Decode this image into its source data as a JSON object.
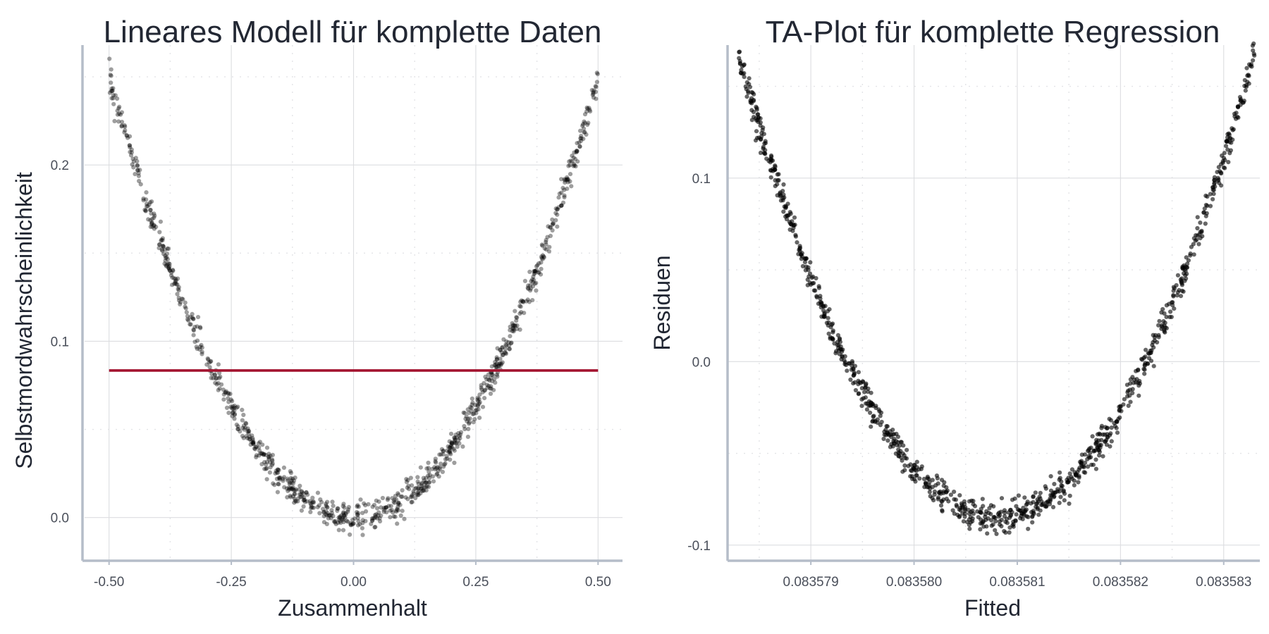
{
  "chart_data": [
    {
      "type": "scatter",
      "title": "Lineares Modell für komplette Daten",
      "xlabel": "Zusammenhalt",
      "ylabel": "Selbstmordwahrscheinlichkeit",
      "xlim": [
        -0.55,
        0.55
      ],
      "ylim": [
        -0.0245,
        0.268
      ],
      "x_ticks": [
        -0.5,
        -0.25,
        0.0,
        0.25,
        0.5
      ],
      "x_tick_labels": [
        "-0.50",
        "-0.25",
        "0.00",
        "0.25",
        "0.50"
      ],
      "y_ticks": [
        0.0,
        0.1,
        0.2
      ],
      "y_tick_labels": [
        "0.0",
        "0.1",
        "0.2"
      ],
      "grid": true,
      "point_color": "#000000",
      "point_opacity": 0.38,
      "line_color": "#a3132f",
      "curve": {
        "form": "y = x^2",
        "n_points": 1000,
        "noise_sd": 0.004
      },
      "fitted_line": {
        "x": [
          -0.5,
          0.5
        ],
        "y": [
          0.0834,
          0.0834
        ]
      }
    },
    {
      "type": "scatter",
      "title": "TA-Plot für komplette Regression",
      "xlabel": "Fitted",
      "ylabel": "Residuen",
      "xlim": [
        0.0835782,
        0.08358335
      ],
      "ylim": [
        -0.1085,
        0.1725
      ],
      "x_ticks": [
        0.083579,
        0.08358,
        0.083581,
        0.083582,
        0.083583
      ],
      "x_tick_labels": [
        "0.083579",
        "0.083580",
        "0.083581",
        "0.083582",
        "0.083583"
      ],
      "y_ticks": [
        -0.1,
        0.0,
        0.1
      ],
      "y_tick_labels": [
        "-0.1",
        "0.0",
        "0.1"
      ],
      "grid": true,
      "point_color": "#000000",
      "point_opacity": 0.6,
      "curve": {
        "form": "residual vs fitted, U-shaped",
        "x_range": [
          0.0835783,
          0.0835833
        ],
        "vertex_x": 0.0835808,
        "residual_min": -0.085,
        "residual_max": 0.167,
        "n_points": 1000
      }
    }
  ]
}
